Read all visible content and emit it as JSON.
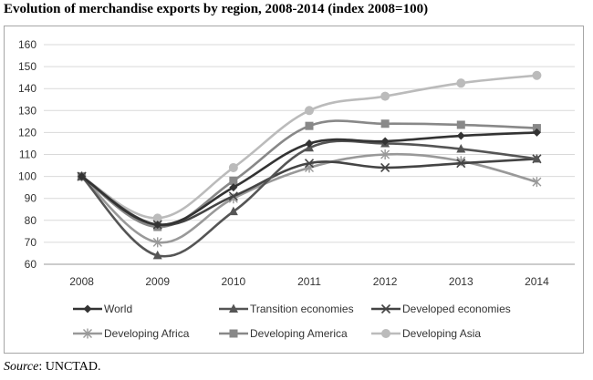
{
  "title": "Evolution of merchandise exports by region, 2008-2014 (index 2008=100)",
  "source_label": "Source",
  "source_text": ": UNCTAD.",
  "chart_data": {
    "type": "line",
    "x": [
      "2008",
      "2009",
      "2010",
      "2011",
      "2012",
      "2013",
      "2014"
    ],
    "ylim": [
      60,
      160
    ],
    "yticks": [
      60,
      70,
      80,
      90,
      100,
      110,
      120,
      130,
      140,
      150,
      160
    ],
    "grid": true,
    "legend_position": "bottom",
    "series": [
      {
        "name": "World",
        "values": [
          100,
          78,
          95,
          115,
          116,
          118.5,
          120
        ],
        "color": "#333333",
        "marker": "diamond"
      },
      {
        "name": "Transition economies",
        "values": [
          100,
          64,
          84,
          113,
          115,
          112.5,
          108
        ],
        "color": "#555555",
        "marker": "triangle"
      },
      {
        "name": "Developed economies",
        "values": [
          100,
          78,
          91,
          106,
          104,
          106,
          108
        ],
        "color": "#444444",
        "marker": "x"
      },
      {
        "name": "Developing Africa",
        "values": [
          100,
          70,
          90,
          104,
          110,
          107,
          97.5
        ],
        "color": "#999999",
        "marker": "star"
      },
      {
        "name": "Developing America",
        "values": [
          100,
          77,
          98,
          123,
          124,
          123.5,
          122
        ],
        "color": "#888888",
        "marker": "square"
      },
      {
        "name": "Developing Asia",
        "values": [
          100,
          81,
          104,
          130,
          136.5,
          142.5,
          146
        ],
        "color": "#bbbbbb",
        "marker": "circle"
      }
    ]
  }
}
